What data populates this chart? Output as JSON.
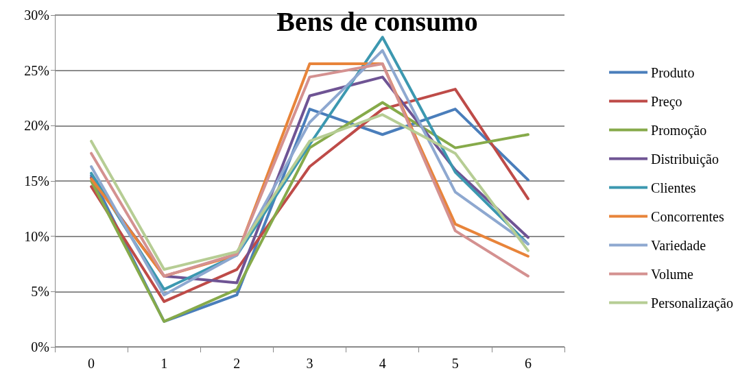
{
  "chart_data": {
    "type": "line",
    "title": "Bens de consumo",
    "categories": [
      "0",
      "1",
      "2",
      "3",
      "4",
      "5",
      "6"
    ],
    "ylim": [
      0,
      30
    ],
    "yticks": [
      {
        "value": 0,
        "label": "0%"
      },
      {
        "value": 5,
        "label": "5%"
      },
      {
        "value": 10,
        "label": "10%"
      },
      {
        "value": 15,
        "label": "15%"
      },
      {
        "value": 20,
        "label": "20%"
      },
      {
        "value": 25,
        "label": "25%"
      },
      {
        "value": 30,
        "label": "30%"
      }
    ],
    "grid": "y",
    "legend": "right",
    "marker": "none",
    "line_style": "solid",
    "series": [
      {
        "name": "Produto",
        "color": "#4a7ebb",
        "values": [
          15.5,
          2.3,
          4.7,
          21.5,
          19.2,
          21.5,
          15.1
        ]
      },
      {
        "name": "Preço",
        "color": "#be4b48",
        "values": [
          14.5,
          4.1,
          7.0,
          16.3,
          21.5,
          23.3,
          13.4
        ]
      },
      {
        "name": "Promoção",
        "color": "#86aa4a",
        "values": [
          15.0,
          2.3,
          5.2,
          18.0,
          22.1,
          18.0,
          19.2
        ]
      },
      {
        "name": "Distribuição",
        "color": "#6f5494",
        "values": [
          15.3,
          6.4,
          5.8,
          22.7,
          24.4,
          16.0,
          9.9
        ]
      },
      {
        "name": "Clientes",
        "color": "#3c98b0",
        "values": [
          15.7,
          5.2,
          8.3,
          18.3,
          28.0,
          15.8,
          9.3
        ]
      },
      {
        "name": "Concorrentes",
        "color": "#e8843a",
        "values": [
          15.2,
          6.4,
          8.3,
          25.6,
          25.6,
          11.1,
          8.2
        ]
      },
      {
        "name": "Variedade",
        "color": "#8ea8d0",
        "values": [
          16.3,
          4.7,
          8.3,
          20.3,
          26.8,
          14.0,
          9.3
        ]
      },
      {
        "name": "Volume",
        "color": "#d49190",
        "values": [
          17.5,
          6.4,
          8.4,
          24.4,
          25.6,
          10.5,
          6.4
        ]
      },
      {
        "name": "Personalização",
        "color": "#b6cd94",
        "values": [
          18.6,
          7.0,
          8.6,
          18.6,
          21.0,
          17.5,
          8.7
        ]
      }
    ]
  }
}
